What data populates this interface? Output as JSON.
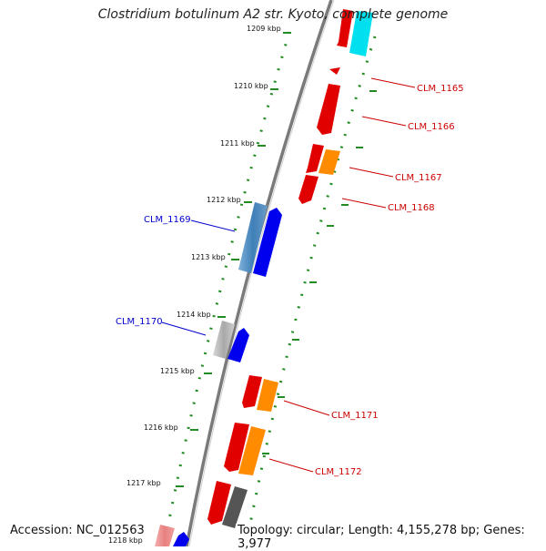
{
  "title": "Clostridium botulinum A2 str. Kyoto, complete genome",
  "footer": {
    "accession": "Accession: NC_012563",
    "summary": "Topology: circular; Length: 4,155,278 bp; Genes: 3,977"
  },
  "ruler": {
    "labels": [
      "1209 kbp",
      "1210 kbp",
      "1211 kbp",
      "1212 kbp",
      "1213 kbp",
      "1214 kbp",
      "1215 kbp",
      "1216 kbp",
      "1217 kbp",
      "1218 kbp"
    ]
  },
  "genes": [
    {
      "id": "CLM_1165",
      "strand": "forward",
      "color": "#e00000"
    },
    {
      "id": "CLM_1166",
      "strand": "forward",
      "color": "#e00000"
    },
    {
      "id": "CLM_1167",
      "strand": "forward",
      "color": "#e00000"
    },
    {
      "id": "CLM_1168",
      "strand": "forward",
      "color": "#e00000"
    },
    {
      "id": "CLM_1169",
      "strand": "reverse",
      "color": "#0000ee"
    },
    {
      "id": "CLM_1170",
      "strand": "reverse",
      "color": "#0000ee"
    },
    {
      "id": "CLM_1171",
      "strand": "forward",
      "color": "#e00000"
    },
    {
      "id": "CLM_1172",
      "strand": "forward",
      "color": "#e00000"
    }
  ],
  "colors": {
    "backbone": "#7a7a7a",
    "ruler": "#228b22",
    "forward_label": "#cc0000",
    "reverse_label": "#0000cc",
    "cog_orange": "#ff8c00",
    "cog_cyan": "#00d8e8",
    "cog_gray": "#555555"
  }
}
